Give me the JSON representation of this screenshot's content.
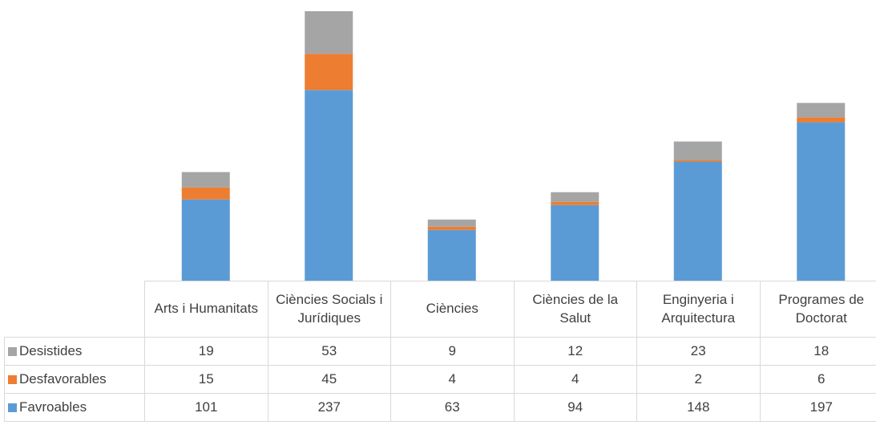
{
  "chart_data": {
    "type": "bar",
    "stacked": true,
    "categories": [
      "Arts i Humanitats",
      "Ciències Socials i Jurídiques",
      "Ciències",
      "Ciències de la Salut",
      "Enginyeria i Arquitectura",
      "Programes de Doctorat"
    ],
    "series": [
      {
        "name": "Favroables",
        "color": "#5b9bd5",
        "values": [
          101,
          237,
          63,
          94,
          148,
          197
        ]
      },
      {
        "name": "Desfavorables",
        "color": "#ed7d31",
        "values": [
          15,
          45,
          4,
          4,
          2,
          6
        ]
      },
      {
        "name": "Desistides",
        "color": "#a5a5a5",
        "values": [
          19,
          53,
          9,
          12,
          23,
          18
        ]
      }
    ]
  }
}
